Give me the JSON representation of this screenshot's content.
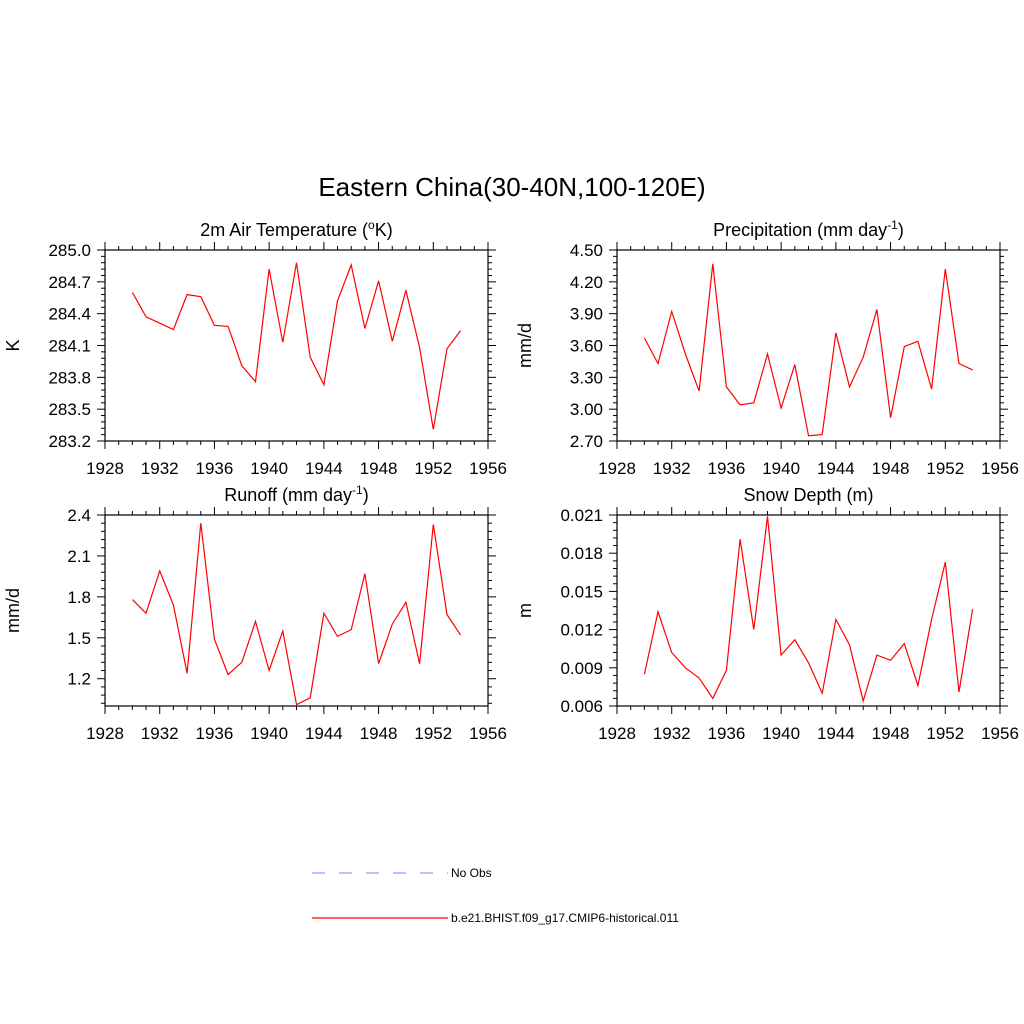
{
  "figure": {
    "title": "Eastern China(30-40N,100-120E)"
  },
  "colors": {
    "model": "#ff0000",
    "obs": "#9999ff",
    "axes": "#000000"
  },
  "legend": {
    "items": [
      {
        "label": "No Obs",
        "style": "dashed",
        "color": "#9999ff"
      },
      {
        "label": "b.e21.BHIST.f09_g17.CMIP6-historical.011",
        "style": "solid",
        "color": "#ff0000"
      }
    ]
  },
  "chart_data": [
    {
      "type": "line",
      "title": "2m Air Temperature (",
      "title_sup": "o",
      "title_after": "K)",
      "ylabel": "K",
      "xlim": [
        1928,
        1956
      ],
      "ylim": [
        283.2,
        285.0
      ],
      "xticks": [
        1928,
        1932,
        1936,
        1940,
        1944,
        1948,
        1952,
        1956
      ],
      "yticks": [
        283.2,
        283.5,
        283.8,
        284.1,
        284.4,
        284.7,
        285.0
      ],
      "ytick_labels": [
        "283.2",
        "283.5",
        "283.8",
        "284.1",
        "284.4",
        "284.7",
        "285.0"
      ],
      "x": [
        1930,
        1931,
        1932,
        1933,
        1934,
        1935,
        1936,
        1937,
        1938,
        1939,
        1940,
        1941,
        1942,
        1943,
        1944,
        1945,
        1946,
        1947,
        1948,
        1949,
        1950,
        1951,
        1952,
        1953,
        1954
      ],
      "series": [
        {
          "values": [
            284.6,
            284.37,
            284.31,
            284.25,
            284.58,
            284.56,
            284.29,
            284.28,
            283.91,
            283.76,
            284.82,
            284.13,
            284.88,
            283.99,
            283.73,
            284.52,
            284.86,
            284.26,
            284.71,
            284.14,
            284.62,
            284.08,
            283.31,
            284.07,
            284.24
          ]
        }
      ]
    },
    {
      "type": "line",
      "title": "Precipitation (mm day",
      "title_sup": "-1",
      "title_after": ")",
      "ylabel": "mm/d",
      "xlim": [
        1928,
        1956
      ],
      "ylim": [
        2.7,
        4.5
      ],
      "xticks": [
        1928,
        1932,
        1936,
        1940,
        1944,
        1948,
        1952,
        1956
      ],
      "yticks": [
        2.7,
        3.0,
        3.3,
        3.6,
        3.9,
        4.2,
        4.5
      ],
      "ytick_labels": [
        "2.70",
        "3.00",
        "3.30",
        "3.60",
        "3.90",
        "4.20",
        "4.50"
      ],
      "x": [
        1930,
        1931,
        1932,
        1933,
        1934,
        1935,
        1936,
        1937,
        1938,
        1939,
        1940,
        1941,
        1942,
        1943,
        1944,
        1945,
        1946,
        1947,
        1948,
        1949,
        1950,
        1951,
        1952,
        1953,
        1954
      ],
      "series": [
        {
          "values": [
            3.67,
            3.43,
            3.92,
            3.52,
            3.17,
            4.37,
            3.21,
            3.04,
            3.06,
            3.52,
            3.01,
            3.42,
            2.75,
            2.76,
            3.72,
            3.21,
            3.49,
            3.94,
            2.92,
            3.59,
            3.64,
            3.19,
            4.32,
            3.43,
            3.37
          ]
        }
      ]
    },
    {
      "type": "line",
      "title": "Runoff (mm day",
      "title_sup": "-1",
      "title_after": ")",
      "ylabel": "mm/d",
      "xlim": [
        1928,
        1956
      ],
      "ylim": [
        1.0,
        2.4
      ],
      "xticks": [
        1928,
        1932,
        1936,
        1940,
        1944,
        1948,
        1952,
        1956
      ],
      "yticks": [
        1.2,
        1.5,
        1.8,
        2.1,
        2.4
      ],
      "ytick_labels": [
        "1.2",
        "1.5",
        "1.8",
        "2.1",
        "2.4"
      ],
      "x": [
        1930,
        1931,
        1932,
        1933,
        1934,
        1935,
        1936,
        1937,
        1938,
        1939,
        1940,
        1941,
        1942,
        1943,
        1944,
        1945,
        1946,
        1947,
        1948,
        1949,
        1950,
        1951,
        1952,
        1953,
        1954
      ],
      "series": [
        {
          "values": [
            1.78,
            1.68,
            1.99,
            1.74,
            1.24,
            2.34,
            1.49,
            1.23,
            1.32,
            1.62,
            1.26,
            1.55,
            1.01,
            1.06,
            1.68,
            1.51,
            1.56,
            1.97,
            1.31,
            1.6,
            1.76,
            1.31,
            2.33,
            1.67,
            1.52
          ]
        }
      ]
    },
    {
      "type": "line",
      "title": "Snow Depth (m)",
      "title_sup": "",
      "title_after": "",
      "ylabel": "m",
      "xlim": [
        1928,
        1956
      ],
      "ylim": [
        0.006,
        0.021
      ],
      "xticks": [
        1928,
        1932,
        1936,
        1940,
        1944,
        1948,
        1952,
        1956
      ],
      "yticks": [
        0.006,
        0.009,
        0.012,
        0.015,
        0.018,
        0.021
      ],
      "ytick_labels": [
        "0.006",
        "0.009",
        "0.012",
        "0.015",
        "0.018",
        "0.021"
      ],
      "x": [
        1930,
        1931,
        1932,
        1933,
        1934,
        1935,
        1936,
        1937,
        1938,
        1939,
        1940,
        1941,
        1942,
        1943,
        1944,
        1945,
        1946,
        1947,
        1948,
        1949,
        1950,
        1951,
        1952,
        1953,
        1954
      ],
      "series": [
        {
          "values": [
            0.0085,
            0.0134,
            0.0102,
            0.009,
            0.0082,
            0.0066,
            0.0088,
            0.0191,
            0.012,
            0.0209,
            0.01,
            0.0112,
            0.0094,
            0.007,
            0.0128,
            0.0108,
            0.0064,
            0.01,
            0.0096,
            0.0109,
            0.0076,
            0.0128,
            0.0173,
            0.0071,
            0.0136
          ]
        }
      ]
    }
  ]
}
